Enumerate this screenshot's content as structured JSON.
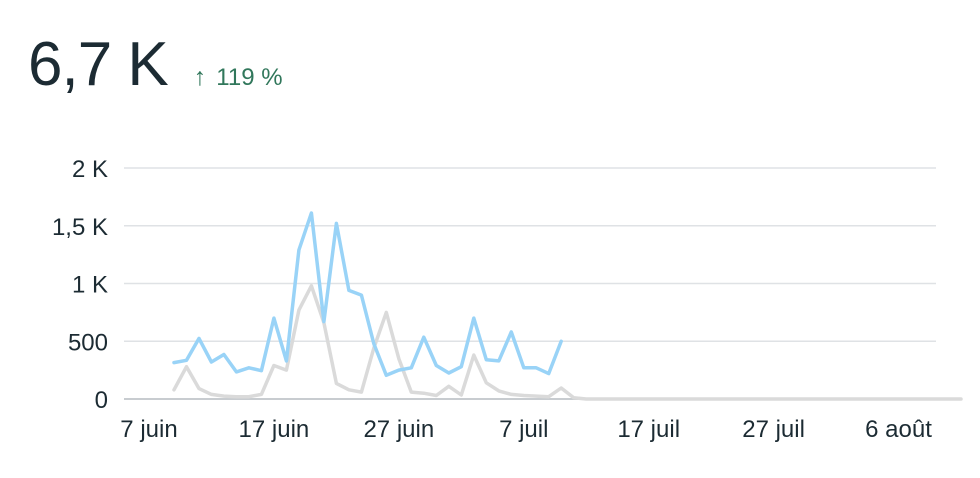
{
  "summary": {
    "value": "6,7 K",
    "delta_arrow": "↑",
    "delta_text": "119 %",
    "delta_color": "#31775b"
  },
  "chart_data": {
    "type": "line",
    "x_start": "2023-06-05",
    "x_end": "2023-08-09",
    "x_ticks": [
      {
        "date": "2023-06-07",
        "label": "7 juin"
      },
      {
        "date": "2023-06-17",
        "label": "17 juin"
      },
      {
        "date": "2023-06-27",
        "label": "27 juin"
      },
      {
        "date": "2023-07-07",
        "label": "7 juil"
      },
      {
        "date": "2023-07-17",
        "label": "17 juil"
      },
      {
        "date": "2023-07-27",
        "label": "27 juil"
      },
      {
        "date": "2023-08-06",
        "label": "6 août"
      }
    ],
    "ylim": [
      0,
      2000
    ],
    "y_ticks": [
      {
        "value": 0,
        "label": "0"
      },
      {
        "value": 500,
        "label": "500"
      },
      {
        "value": 1000,
        "label": "1 K"
      },
      {
        "value": 1500,
        "label": "1,5 K"
      },
      {
        "value": 2000,
        "label": "2 K"
      }
    ],
    "grid": true,
    "series": [
      {
        "color": "#99d3f7",
        "start_date": "2023-06-09",
        "values": [
          315,
          335,
          525,
          320,
          385,
          235,
          270,
          245,
          700,
          330,
          1290,
          1610,
          670,
          1520,
          940,
          900,
          480,
          205,
          250,
          270,
          535,
          290,
          225,
          280,
          700,
          340,
          330,
          580,
          270,
          270,
          220,
          500
        ]
      },
      {
        "color": "#dadada",
        "start_date": "2023-06-09",
        "values": [
          80,
          280,
          90,
          40,
          25,
          20,
          20,
          40,
          290,
          250,
          770,
          980,
          660,
          135,
          80,
          60,
          440,
          750,
          350,
          60,
          50,
          30,
          110,
          35,
          380,
          140,
          70,
          40,
          30,
          25,
          20,
          95,
          10,
          0,
          0,
          0,
          0,
          0,
          0,
          0,
          0,
          0,
          0,
          0,
          0,
          0,
          0,
          0,
          0,
          0,
          0,
          0,
          0,
          0,
          0,
          0,
          0,
          0,
          0,
          0,
          0,
          0,
          0,
          0
        ]
      }
    ]
  }
}
